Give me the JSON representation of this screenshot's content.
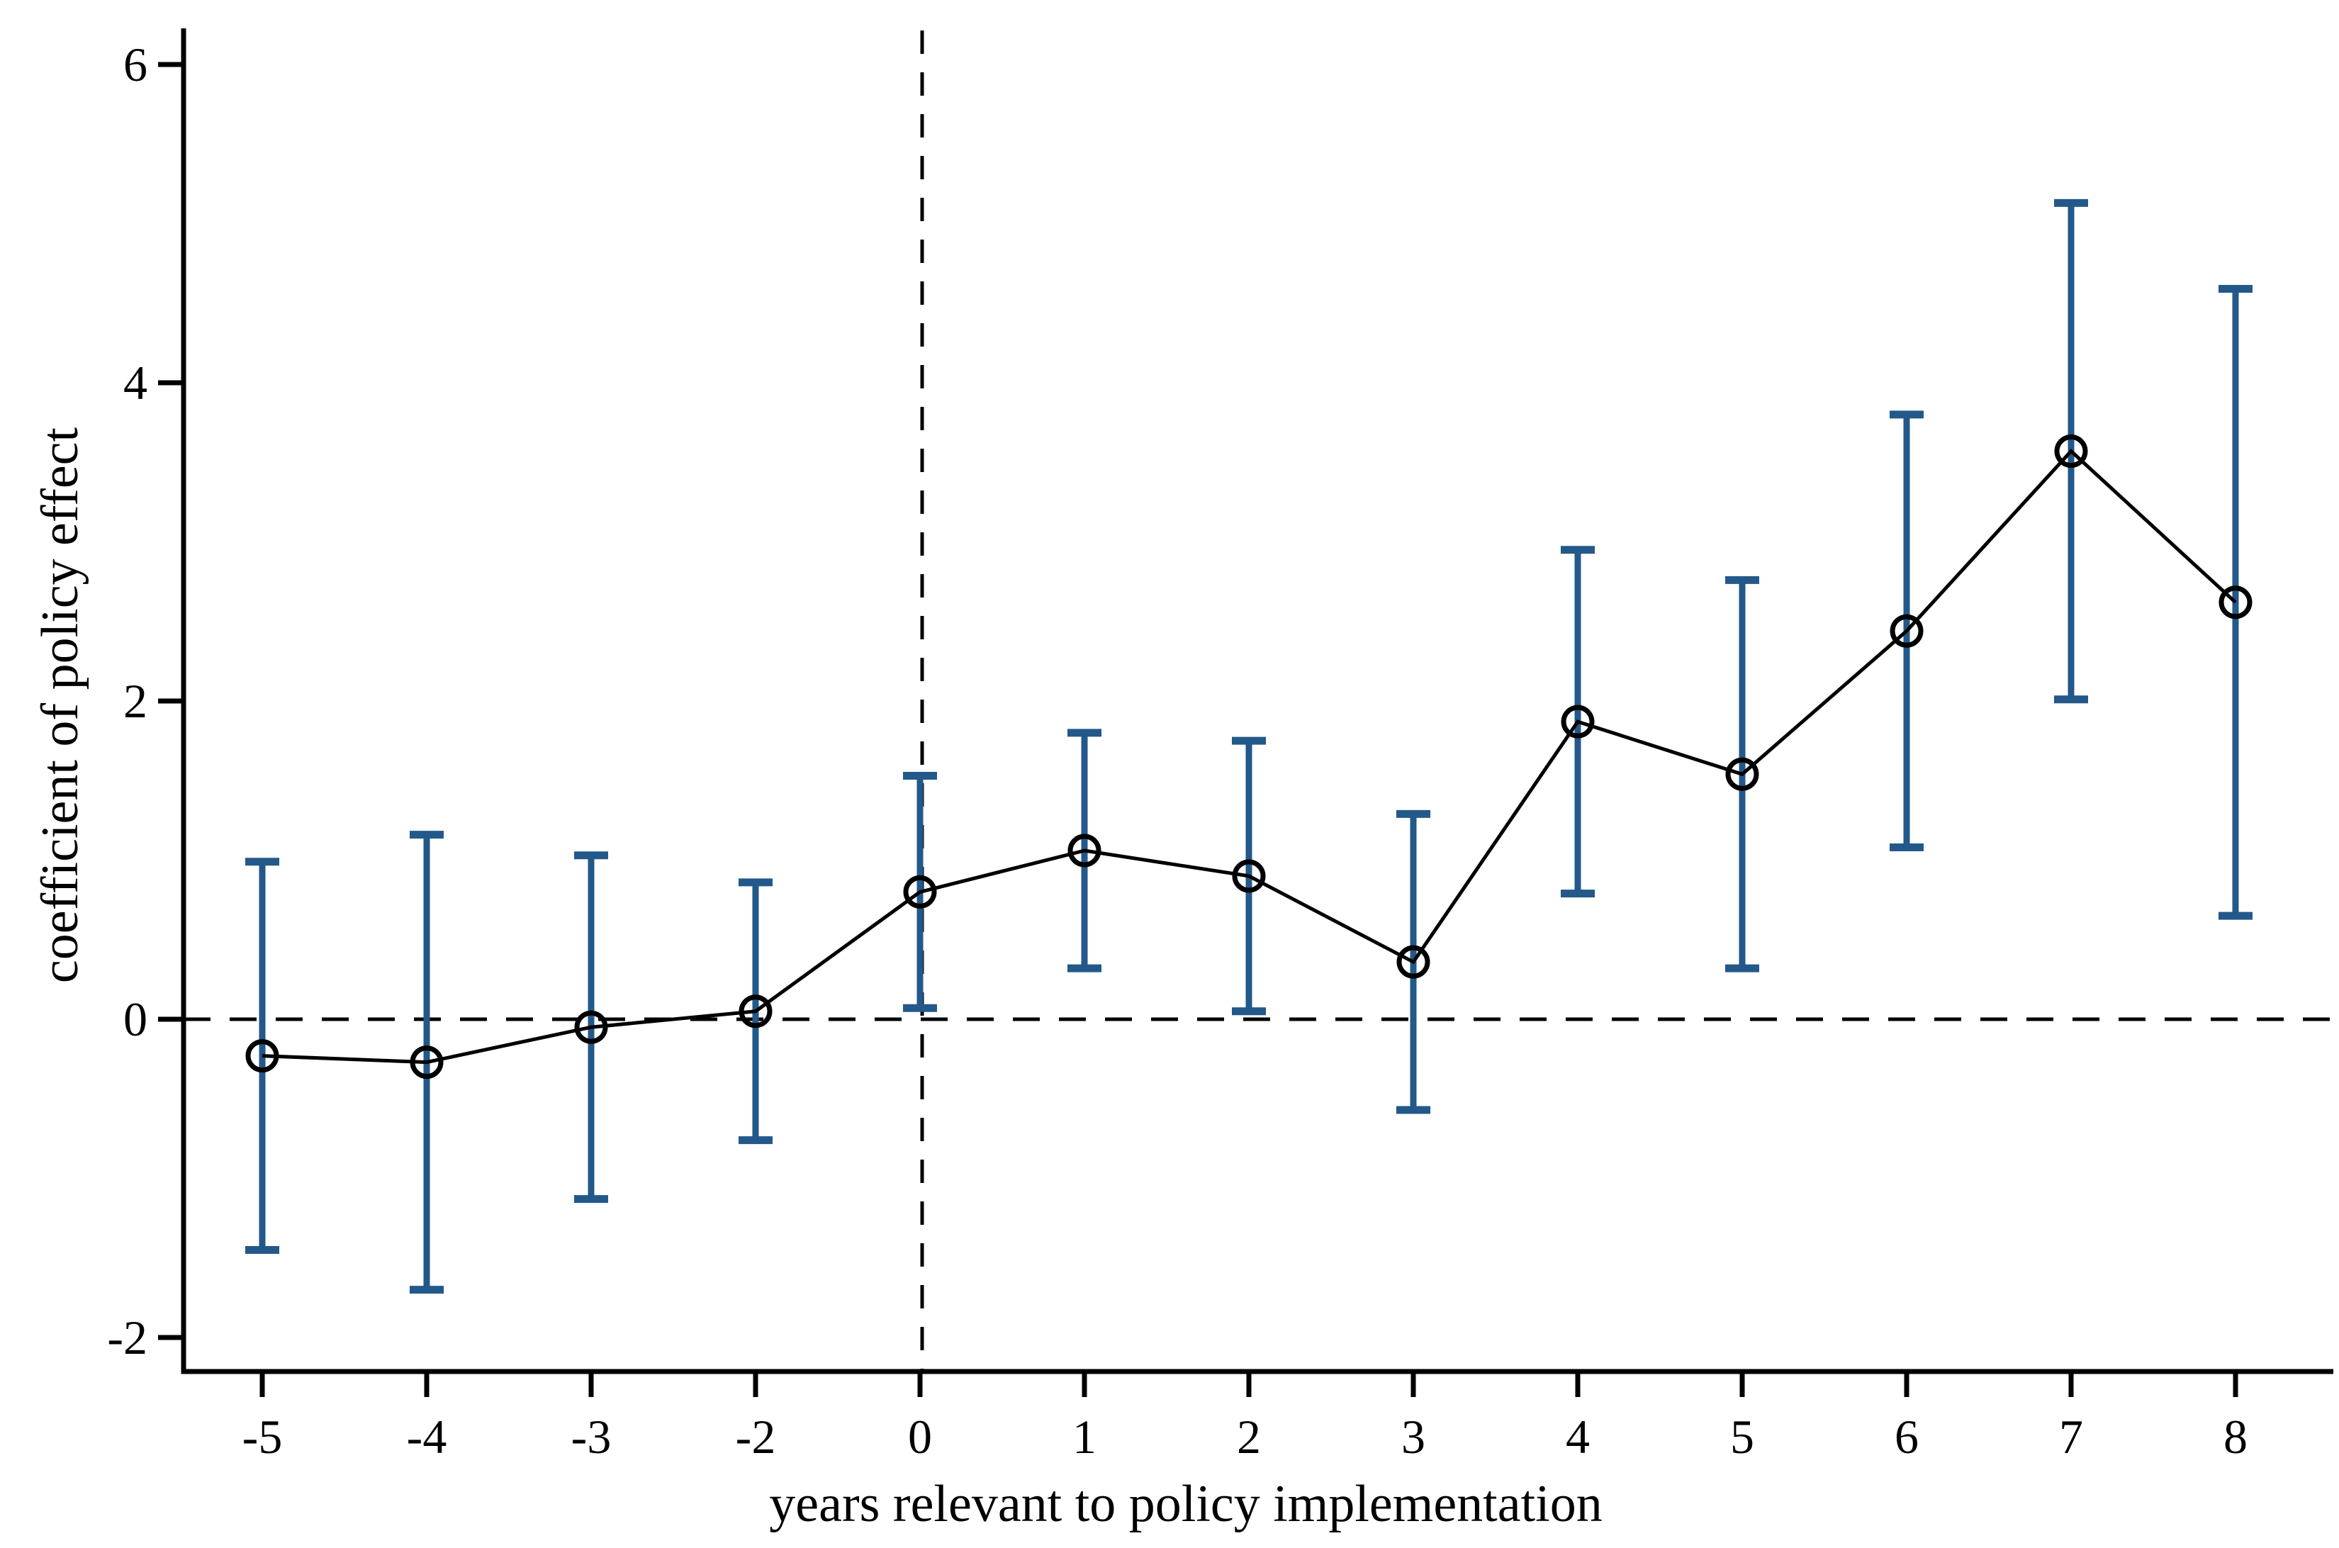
{
  "figure": {
    "background": "#ffffff",
    "plot_style": "event-study coefficient plot with 95% confidence intervals"
  },
  "chart_data": {
    "type": "line",
    "title": "",
    "xlabel": "years relevant to policy implementation",
    "ylabel": "coefficient of policy effect",
    "categories": [
      "-5",
      "-4",
      "-3",
      "-2",
      "0",
      "1",
      "2",
      "3",
      "4",
      "5",
      "6",
      "7",
      "8"
    ],
    "series": [
      {
        "name": "coefficient of policy effect",
        "values": [
          -0.23,
          -0.27,
          -0.05,
          0.05,
          0.8,
          1.06,
          0.9,
          0.36,
          1.87,
          1.54,
          2.44,
          3.57,
          2.62
        ]
      }
    ],
    "error_bars": {
      "lower": [
        -1.45,
        -1.7,
        -1.13,
        -0.76,
        0.07,
        0.32,
        0.05,
        -0.57,
        0.79,
        0.32,
        1.08,
        2.01,
        0.65
      ],
      "upper": [
        0.99,
        1.16,
        1.03,
        0.86,
        1.53,
        1.8,
        1.75,
        1.29,
        2.95,
        2.76,
        3.8,
        5.13,
        4.59
      ]
    },
    "y_ticks": [
      6,
      4,
      2,
      0,
      -2
    ],
    "ylim": [
      -2.45,
      6.25
    ],
    "reference_lines": {
      "horizontal_y": 0,
      "vertical_x_category": "0"
    },
    "grid": "off",
    "legend": "none",
    "marker": "open-circle",
    "colors": {
      "error_bar": "#23588a",
      "line": "#000000",
      "marker": "#000000",
      "axis": "#000000",
      "text": "#000000",
      "background": "#ffffff"
    }
  }
}
